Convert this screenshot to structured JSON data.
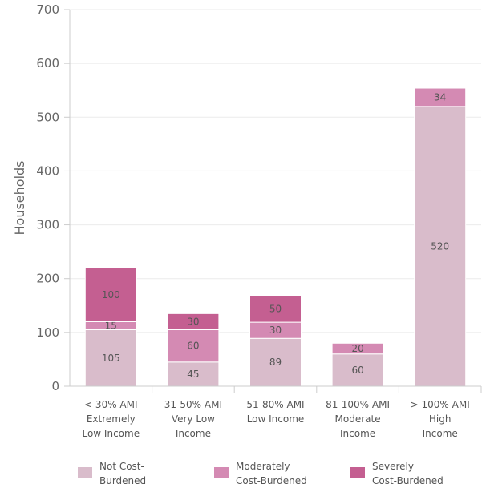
{
  "chart_data": {
    "type": "bar",
    "stacked": true,
    "ylabel": "Households",
    "ylim": [
      0,
      700
    ],
    "yticks": [
      0,
      100,
      200,
      300,
      400,
      500,
      600,
      700
    ],
    "grid": true,
    "legend_position": "bottom",
    "categories": [
      [
        "< 30% AMI",
        "Extremely",
        "Low Income"
      ],
      [
        "31-50% AMI",
        "Very Low",
        "Income"
      ],
      [
        "51-80% AMI",
        "Low Income"
      ],
      [
        "81-100% AMI",
        "Moderate",
        "Income"
      ],
      [
        "> 100% AMI",
        "High",
        "Income"
      ]
    ],
    "series": [
      {
        "name": [
          "Not Cost-",
          "Burdened"
        ],
        "color": "#d9bccb",
        "values": [
          105,
          45,
          89,
          60,
          520
        ]
      },
      {
        "name": [
          "Moderately",
          "Cost-Burdened"
        ],
        "color": "#d48ab3",
        "values": [
          15,
          60,
          30,
          20,
          34
        ]
      },
      {
        "name": [
          "Severely",
          "Cost-Burdened"
        ],
        "color": "#c45f91",
        "values": [
          100,
          30,
          50,
          0,
          0
        ]
      }
    ]
  }
}
